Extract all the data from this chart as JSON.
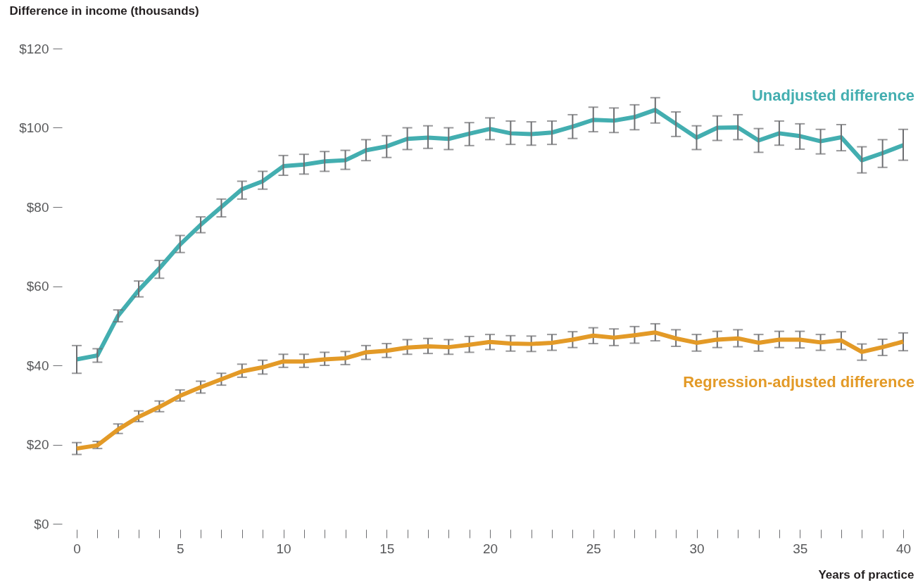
{
  "chart_data": {
    "type": "line",
    "xlabel": "Years of practice",
    "ylabel": "Difference in income (thousands)",
    "x": [
      0,
      1,
      2,
      3,
      4,
      5,
      6,
      7,
      8,
      9,
      10,
      11,
      12,
      13,
      14,
      15,
      16,
      17,
      18,
      19,
      20,
      21,
      22,
      23,
      24,
      25,
      26,
      27,
      28,
      29,
      30,
      31,
      32,
      33,
      34,
      35,
      36,
      37,
      38,
      39,
      40
    ],
    "xlim": [
      0,
      40
    ],
    "xticks": [
      0,
      {
        "value": 1,
        "label": null
      },
      {
        "value": 2,
        "label": null
      },
      {
        "value": 3,
        "label": null
      },
      {
        "value": 4,
        "label": null
      },
      5,
      {
        "value": 6,
        "label": null
      },
      {
        "value": 7,
        "label": null
      },
      {
        "value": 8,
        "label": null
      },
      {
        "value": 9,
        "label": null
      },
      10,
      {
        "value": 11,
        "label": null
      },
      {
        "value": 12,
        "label": null
      },
      {
        "value": 13,
        "label": null
      },
      {
        "value": 14,
        "label": null
      },
      15,
      {
        "value": 16,
        "label": null
      },
      {
        "value": 17,
        "label": null
      },
      {
        "value": 18,
        "label": null
      },
      {
        "value": 19,
        "label": null
      },
      20,
      {
        "value": 21,
        "label": null
      },
      {
        "value": 22,
        "label": null
      },
      {
        "value": 23,
        "label": null
      },
      {
        "value": 24,
        "label": null
      },
      25,
      {
        "value": 26,
        "label": null
      },
      {
        "value": 27,
        "label": null
      },
      {
        "value": 28,
        "label": null
      },
      {
        "value": 29,
        "label": null
      },
      30,
      {
        "value": 31,
        "label": null
      },
      {
        "value": 32,
        "label": null
      },
      {
        "value": 33,
        "label": null
      },
      {
        "value": 34,
        "label": null
      },
      35,
      {
        "value": 36,
        "label": null
      },
      {
        "value": 37,
        "label": null
      },
      {
        "value": 38,
        "label": null
      },
      {
        "value": 39,
        "label": null
      },
      40
    ],
    "ylim": [
      0,
      120
    ],
    "yticks": [
      {
        "value": 0,
        "label": "$0"
      },
      {
        "value": 20,
        "label": "$20"
      },
      {
        "value": 40,
        "label": "$40"
      },
      {
        "value": 60,
        "label": "$60"
      },
      {
        "value": 80,
        "label": "$80"
      },
      {
        "value": 100,
        "label": "$100"
      },
      {
        "value": 120,
        "label": "$120"
      }
    ],
    "grid": false,
    "line_style": "solid",
    "series": [
      {
        "name": "Unadjusted difference",
        "color": "#43aeb0",
        "values": [
          41.5,
          42.5,
          52.5,
          59,
          64.5,
          70.5,
          75.5,
          80,
          84.5,
          86.5,
          90.3,
          90.7,
          91.5,
          91.8,
          94.3,
          95.3,
          97.2,
          97.5,
          97.2,
          98.5,
          99.7,
          98.6,
          98.4,
          98.8,
          100.3,
          102,
          101.8,
          102.7,
          104.5,
          101,
          97.5,
          100,
          100.1,
          96.8,
          98.6,
          97.9,
          96.6,
          97.6,
          91.8,
          93.6,
          95.6
        ],
        "errors": [
          [
            38,
            45
          ],
          [
            40.8,
            44.2
          ],
          [
            51,
            54
          ],
          [
            57.3,
            61.3
          ],
          [
            62,
            66.5
          ],
          [
            68.5,
            72.8
          ],
          [
            73.5,
            77.5
          ],
          [
            77.5,
            82
          ],
          [
            82,
            86.5
          ],
          [
            84.5,
            89
          ],
          [
            88,
            93
          ],
          [
            88.3,
            93.3
          ],
          [
            89,
            94
          ],
          [
            89.5,
            94.3
          ],
          [
            91.7,
            97
          ],
          [
            92.5,
            98
          ],
          [
            94.5,
            100
          ],
          [
            94.8,
            100.5
          ],
          [
            94.5,
            100
          ],
          [
            95.5,
            101.3
          ],
          [
            97,
            102.5
          ],
          [
            95.8,
            101.7
          ],
          [
            95.6,
            101.5
          ],
          [
            95.8,
            101.7
          ],
          [
            97.3,
            103.3
          ],
          [
            99,
            105.2
          ],
          [
            98.8,
            105
          ],
          [
            99.5,
            105.8
          ],
          [
            101.2,
            107.6
          ],
          [
            97.8,
            104
          ],
          [
            94.5,
            100.5
          ],
          [
            96.8,
            103
          ],
          [
            97,
            103.3
          ],
          [
            93.8,
            99.8
          ],
          [
            95.6,
            101.7
          ],
          [
            94.6,
            101
          ],
          [
            93.4,
            99.6
          ],
          [
            94.2,
            100.8
          ],
          [
            88.6,
            95.2
          ],
          [
            90,
            97
          ],
          [
            91.8,
            99.6
          ]
        ]
      },
      {
        "name": "Regression-adjusted difference",
        "color": "#e39a27",
        "values": [
          19,
          19.8,
          23.8,
          27,
          29.5,
          32.3,
          34.5,
          36.5,
          38.5,
          39.5,
          41,
          41,
          41.5,
          41.8,
          43.3,
          43.7,
          44.5,
          44.8,
          44.6,
          45.2,
          45.9,
          45.5,
          45.4,
          45.7,
          46.5,
          47.5,
          47,
          47.6,
          48.3,
          46.8,
          45.7,
          46.5,
          46.8,
          45.7,
          46.5,
          46.5,
          45.8,
          46.3,
          43.4,
          44.6,
          46
        ],
        "errors": [
          [
            17.5,
            20.5
          ],
          [
            19,
            20.8
          ],
          [
            22.8,
            25.2
          ],
          [
            25.8,
            28.5
          ],
          [
            28.3,
            31
          ],
          [
            31,
            33.8
          ],
          [
            33,
            36
          ],
          [
            35,
            38
          ],
          [
            37,
            40.3
          ],
          [
            37.8,
            41.3
          ],
          [
            39.5,
            42.8
          ],
          [
            39.5,
            42.8
          ],
          [
            40,
            43.3
          ],
          [
            40.2,
            43.5
          ],
          [
            41.5,
            45
          ],
          [
            42,
            45.5
          ],
          [
            42.8,
            46.5
          ],
          [
            43,
            46.8
          ],
          [
            42.8,
            46.5
          ],
          [
            43.3,
            47.3
          ],
          [
            44,
            47.8
          ],
          [
            43.6,
            47.5
          ],
          [
            43.5,
            47.4
          ],
          [
            43.8,
            47.8
          ],
          [
            44.5,
            48.5
          ],
          [
            45.5,
            49.5
          ],
          [
            45,
            49.2
          ],
          [
            45.6,
            49.8
          ],
          [
            46.2,
            50.5
          ],
          [
            44.8,
            49
          ],
          [
            43.6,
            47.8
          ],
          [
            44.5,
            48.6
          ],
          [
            44.7,
            49
          ],
          [
            43.6,
            47.8
          ],
          [
            44.5,
            48.6
          ],
          [
            44.4,
            48.6
          ],
          [
            43.8,
            47.8
          ],
          [
            44,
            48.5
          ],
          [
            41.3,
            45.4
          ],
          [
            42.5,
            46.6
          ],
          [
            43.7,
            48.2
          ]
        ]
      }
    ]
  }
}
